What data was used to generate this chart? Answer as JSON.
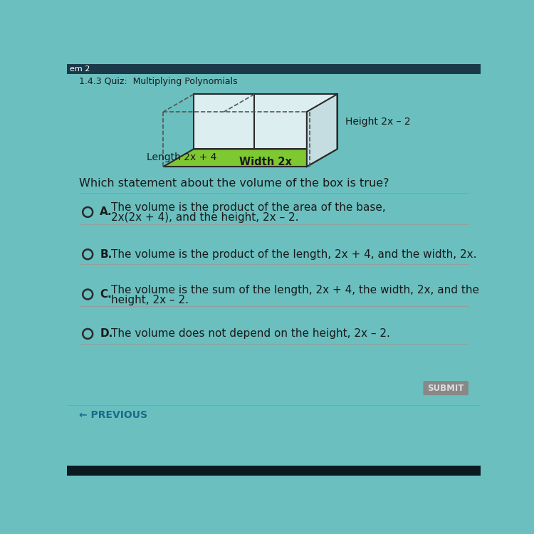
{
  "background_color": "#6bbfbf",
  "header_bar_color": "#1a3a4a",
  "header_text": "1.4.3 Quiz:  Multiplying Polynomials",
  "header_label": "em 2",
  "quiz_question": "Which statement about the volume of the box is true?",
  "box_label_length": "Length 2x + 4",
  "box_label_width": "Width 2x",
  "box_label_height": "Height 2x – 2",
  "choices": [
    {
      "letter": "A.",
      "text1": "The volume is the product of the area of the base,",
      "text2": "2x(2x + 4), and the height, 2x – 2."
    },
    {
      "letter": "B.",
      "text1": "The volume is the product of the length, 2x + 4, and the width, 2x.",
      "text2": ""
    },
    {
      "letter": "C.",
      "text1": "The volume is the sum of the length, 2x + 4, the width, 2x, and the",
      "text2": "height, 2x – 2."
    },
    {
      "letter": "D.",
      "text1": "The volume does not depend on the height, 2x – 2.",
      "text2": ""
    }
  ],
  "footer_previous": "← PREVIOUS",
  "footer_submit": "SUBMIT",
  "box_fill_green": "#7ec832",
  "box_wall_color": "#c8e8e8",
  "box_stroke": "#2a2a2a",
  "circle_color": "#2a2a2a",
  "text_color": "#1a1a1a",
  "separator_color": "#999999",
  "submit_bg": "#888888",
  "submit_text": "#dddddd",
  "previous_color": "#1a6a8a"
}
